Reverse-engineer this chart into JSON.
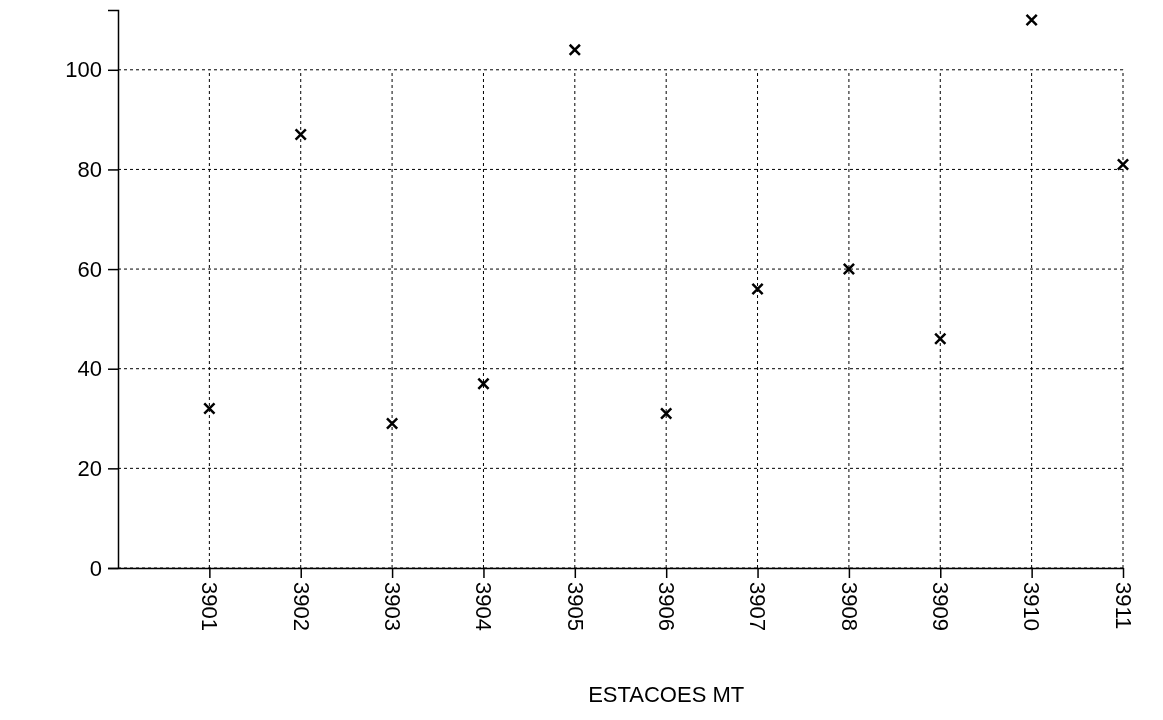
{
  "chart_data": {
    "type": "scatter",
    "xlabel": "ESTACOES MT",
    "categories": [
      "3901",
      "3902",
      "3903",
      "3904",
      "3905",
      "3906",
      "3907",
      "3908",
      "3909",
      "3910",
      "3911"
    ],
    "values": [
      32,
      87,
      29,
      37,
      104,
      31,
      56,
      60,
      46,
      110,
      81
    ],
    "color": "#000000",
    "marker": "cross",
    "ylim": [
      0,
      112
    ],
    "yticks": [
      0,
      20,
      40,
      60,
      80,
      100
    ],
    "grid": true
  }
}
